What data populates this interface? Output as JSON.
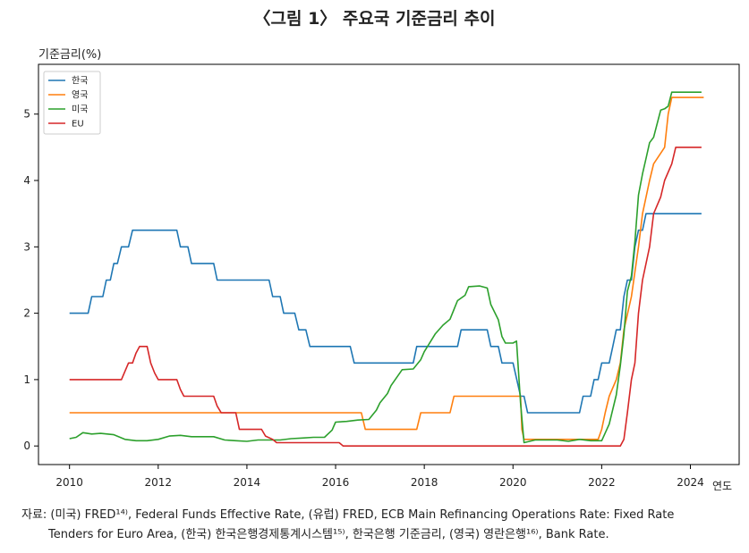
{
  "title": "〈그림 1〉 주요국 기준금리 추이",
  "source_line1": "자료: (미국) FRED¹⁴⁾, Federal Funds Effective Rate, (유럽) FRED, ECB Main Refinancing Operations Rate: Fixed Rate",
  "source_line2": "Tenders for Euro Area, (한국) 한국은행경제통계시스템¹⁵⁾, 한국은행 기준금리, (영국) 영란은행¹⁶⁾, Bank Rate.",
  "chart_data": {
    "type": "line",
    "ylabel": "기준금리(%)",
    "xlabel": "연도",
    "xlim": [
      2009.3,
      2025.1
    ],
    "ylim": [
      -0.28,
      5.75
    ],
    "xticks": [
      2010,
      2012,
      2014,
      2016,
      2018,
      2020,
      2022,
      2024
    ],
    "yticks": [
      0,
      1,
      2,
      3,
      4,
      5
    ],
    "grid": false,
    "legend_position": "top-left",
    "series": [
      {
        "name": "한국",
        "color": "#1f77b4",
        "points": [
          [
            2010.0,
            2.0
          ],
          [
            2010.42,
            2.0
          ],
          [
            2010.5,
            2.25
          ],
          [
            2010.75,
            2.25
          ],
          [
            2010.83,
            2.5
          ],
          [
            2010.92,
            2.5
          ],
          [
            2011.0,
            2.75
          ],
          [
            2011.08,
            2.75
          ],
          [
            2011.17,
            3.0
          ],
          [
            2011.33,
            3.0
          ],
          [
            2011.42,
            3.25
          ],
          [
            2012.42,
            3.25
          ],
          [
            2012.5,
            3.0
          ],
          [
            2012.67,
            3.0
          ],
          [
            2012.75,
            2.75
          ],
          [
            2013.25,
            2.75
          ],
          [
            2013.33,
            2.5
          ],
          [
            2014.5,
            2.5
          ],
          [
            2014.58,
            2.25
          ],
          [
            2014.75,
            2.25
          ],
          [
            2014.83,
            2.0
          ],
          [
            2015.08,
            2.0
          ],
          [
            2015.17,
            1.75
          ],
          [
            2015.33,
            1.75
          ],
          [
            2015.42,
            1.5
          ],
          [
            2016.33,
            1.5
          ],
          [
            2016.42,
            1.25
          ],
          [
            2017.75,
            1.25
          ],
          [
            2017.83,
            1.5
          ],
          [
            2018.75,
            1.5
          ],
          [
            2018.83,
            1.75
          ],
          [
            2019.42,
            1.75
          ],
          [
            2019.5,
            1.5
          ],
          [
            2019.67,
            1.5
          ],
          [
            2019.75,
            1.25
          ],
          [
            2020.0,
            1.25
          ],
          [
            2020.17,
            0.75
          ],
          [
            2020.25,
            0.75
          ],
          [
            2020.33,
            0.5
          ],
          [
            2021.5,
            0.5
          ],
          [
            2021.58,
            0.75
          ],
          [
            2021.75,
            0.75
          ],
          [
            2021.83,
            1.0
          ],
          [
            2021.92,
            1.0
          ],
          [
            2022.0,
            1.25
          ],
          [
            2022.17,
            1.25
          ],
          [
            2022.25,
            1.5
          ],
          [
            2022.33,
            1.75
          ],
          [
            2022.42,
            1.75
          ],
          [
            2022.5,
            2.25
          ],
          [
            2022.58,
            2.5
          ],
          [
            2022.67,
            2.5
          ],
          [
            2022.75,
            3.0
          ],
          [
            2022.83,
            3.25
          ],
          [
            2022.92,
            3.25
          ],
          [
            2023.0,
            3.5
          ],
          [
            2024.25,
            3.5
          ]
        ]
      },
      {
        "name": "영국",
        "color": "#ff7f0e",
        "points": [
          [
            2010.0,
            0.5
          ],
          [
            2016.58,
            0.5
          ],
          [
            2016.67,
            0.25
          ],
          [
            2017.83,
            0.25
          ],
          [
            2017.92,
            0.5
          ],
          [
            2018.58,
            0.5
          ],
          [
            2018.67,
            0.75
          ],
          [
            2020.17,
            0.75
          ],
          [
            2020.2,
            0.25
          ],
          [
            2020.25,
            0.1
          ],
          [
            2021.92,
            0.1
          ],
          [
            2022.0,
            0.25
          ],
          [
            2022.08,
            0.5
          ],
          [
            2022.17,
            0.75
          ],
          [
            2022.33,
            1.0
          ],
          [
            2022.42,
            1.25
          ],
          [
            2022.5,
            1.75
          ],
          [
            2022.67,
            2.25
          ],
          [
            2022.83,
            3.0
          ],
          [
            2022.92,
            3.5
          ],
          [
            2023.08,
            4.0
          ],
          [
            2023.17,
            4.25
          ],
          [
            2023.42,
            4.5
          ],
          [
            2023.5,
            5.0
          ],
          [
            2023.58,
            5.25
          ],
          [
            2024.3,
            5.25
          ]
        ]
      },
      {
        "name": "미국",
        "color": "#2ca02c",
        "points": [
          [
            2010.0,
            0.11
          ],
          [
            2010.15,
            0.13
          ],
          [
            2010.3,
            0.2
          ],
          [
            2010.5,
            0.18
          ],
          [
            2010.7,
            0.19
          ],
          [
            2011.0,
            0.17
          ],
          [
            2011.25,
            0.1
          ],
          [
            2011.5,
            0.08
          ],
          [
            2011.75,
            0.08
          ],
          [
            2012.0,
            0.1
          ],
          [
            2012.25,
            0.15
          ],
          [
            2012.5,
            0.16
          ],
          [
            2012.75,
            0.14
          ],
          [
            2013.0,
            0.14
          ],
          [
            2013.25,
            0.14
          ],
          [
            2013.5,
            0.09
          ],
          [
            2013.75,
            0.08
          ],
          [
            2014.0,
            0.07
          ],
          [
            2014.25,
            0.09
          ],
          [
            2014.5,
            0.09
          ],
          [
            2014.75,
            0.09
          ],
          [
            2015.0,
            0.11
          ],
          [
            2015.25,
            0.12
          ],
          [
            2015.5,
            0.13
          ],
          [
            2015.75,
            0.13
          ],
          [
            2015.92,
            0.24
          ],
          [
            2016.0,
            0.36
          ],
          [
            2016.25,
            0.37
          ],
          [
            2016.5,
            0.39
          ],
          [
            2016.75,
            0.4
          ],
          [
            2016.92,
            0.54
          ],
          [
            2017.0,
            0.65
          ],
          [
            2017.17,
            0.79
          ],
          [
            2017.25,
            0.91
          ],
          [
            2017.5,
            1.15
          ],
          [
            2017.75,
            1.16
          ],
          [
            2017.92,
            1.3
          ],
          [
            2018.0,
            1.42
          ],
          [
            2018.25,
            1.69
          ],
          [
            2018.42,
            1.82
          ],
          [
            2018.58,
            1.91
          ],
          [
            2018.75,
            2.19
          ],
          [
            2018.92,
            2.27
          ],
          [
            2019.0,
            2.4
          ],
          [
            2019.25,
            2.41
          ],
          [
            2019.42,
            2.38
          ],
          [
            2019.5,
            2.13
          ],
          [
            2019.67,
            1.9
          ],
          [
            2019.75,
            1.65
          ],
          [
            2019.83,
            1.55
          ],
          [
            2020.0,
            1.55
          ],
          [
            2020.08,
            1.58
          ],
          [
            2020.17,
            0.65
          ],
          [
            2020.25,
            0.05
          ],
          [
            2020.5,
            0.09
          ],
          [
            2020.75,
            0.09
          ],
          [
            2021.0,
            0.09
          ],
          [
            2021.25,
            0.07
          ],
          [
            2021.5,
            0.1
          ],
          [
            2021.75,
            0.08
          ],
          [
            2022.0,
            0.08
          ],
          [
            2022.17,
            0.33
          ],
          [
            2022.33,
            0.77
          ],
          [
            2022.42,
            1.21
          ],
          [
            2022.5,
            1.68
          ],
          [
            2022.58,
            2.33
          ],
          [
            2022.67,
            2.56
          ],
          [
            2022.75,
            3.08
          ],
          [
            2022.83,
            3.78
          ],
          [
            2022.92,
            4.1
          ],
          [
            2023.0,
            4.33
          ],
          [
            2023.08,
            4.57
          ],
          [
            2023.17,
            4.65
          ],
          [
            2023.33,
            5.06
          ],
          [
            2023.42,
            5.08
          ],
          [
            2023.5,
            5.12
          ],
          [
            2023.58,
            5.33
          ],
          [
            2024.25,
            5.33
          ]
        ]
      },
      {
        "name": "EU",
        "color": "#d62728",
        "points": [
          [
            2010.0,
            1.0
          ],
          [
            2011.17,
            1.0
          ],
          [
            2011.33,
            1.25
          ],
          [
            2011.42,
            1.25
          ],
          [
            2011.5,
            1.4
          ],
          [
            2011.58,
            1.5
          ],
          [
            2011.75,
            1.5
          ],
          [
            2011.83,
            1.25
          ],
          [
            2011.92,
            1.1
          ],
          [
            2012.0,
            1.0
          ],
          [
            2012.42,
            1.0
          ],
          [
            2012.5,
            0.85
          ],
          [
            2012.58,
            0.75
          ],
          [
            2013.25,
            0.75
          ],
          [
            2013.33,
            0.6
          ],
          [
            2013.42,
            0.5
          ],
          [
            2013.75,
            0.5
          ],
          [
            2013.83,
            0.25
          ],
          [
            2014.33,
            0.25
          ],
          [
            2014.42,
            0.15
          ],
          [
            2014.58,
            0.1
          ],
          [
            2014.67,
            0.05
          ],
          [
            2016.08,
            0.05
          ],
          [
            2016.17,
            0.0
          ],
          [
            2022.42,
            0.0
          ],
          [
            2022.5,
            0.1
          ],
          [
            2022.58,
            0.5
          ],
          [
            2022.67,
            1.0
          ],
          [
            2022.75,
            1.25
          ],
          [
            2022.83,
            2.0
          ],
          [
            2022.92,
            2.5
          ],
          [
            2023.08,
            3.0
          ],
          [
            2023.17,
            3.5
          ],
          [
            2023.33,
            3.75
          ],
          [
            2023.42,
            4.0
          ],
          [
            2023.58,
            4.25
          ],
          [
            2023.67,
            4.5
          ],
          [
            2024.25,
            4.5
          ]
        ]
      }
    ]
  }
}
